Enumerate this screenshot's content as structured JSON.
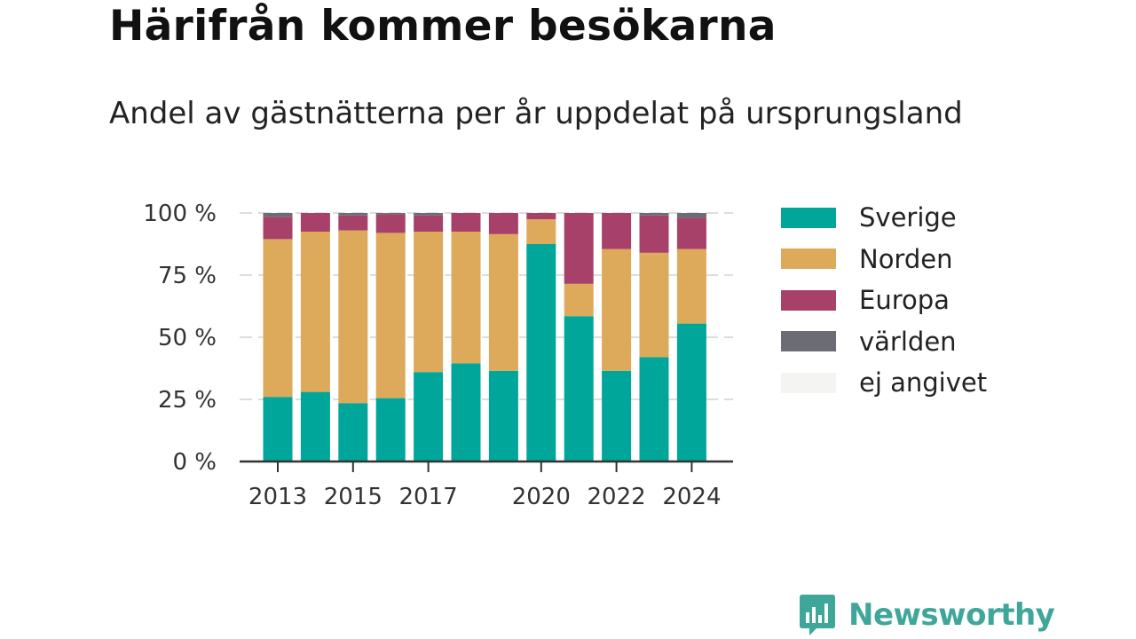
{
  "title": "Härifrån kommer besökarna",
  "subtitle": "Andel av gästnätterna per år uppdelat på ursprungsland",
  "brand": {
    "name": "Newsworthy",
    "icon": "newsworthy-logo-icon"
  },
  "colors": {
    "Sverige": "#00a69a",
    "Norden": "#dcaa5a",
    "Europa": "#a8416a",
    "världen": "#6b6c74",
    "ej angivet": "#f4f4f2"
  },
  "chart_data": {
    "type": "bar",
    "stacked": true,
    "categories": [
      2013,
      2014,
      2015,
      2016,
      2017,
      2018,
      2019,
      2020,
      2021,
      2022,
      2023,
      2024
    ],
    "x_tick_labels": [
      "2013",
      "2015",
      "2017",
      "2020",
      "2022",
      "2024"
    ],
    "series": [
      {
        "name": "Sverige",
        "values": [
          26,
          28,
          23.5,
          25.5,
          36,
          39.5,
          36.5,
          87.5,
          58.5,
          36.5,
          42,
          55.5
        ]
      },
      {
        "name": "Norden",
        "values": [
          63.5,
          64.5,
          69.5,
          66.5,
          56.5,
          53,
          55,
          10,
          13,
          49,
          42,
          30
        ]
      },
      {
        "name": "Europa",
        "values": [
          9,
          7.5,
          6,
          7.5,
          6.5,
          7.5,
          8.5,
          2.5,
          28.5,
          14.5,
          15,
          12.5
        ]
      },
      {
        "name": "världen",
        "values": [
          1.5,
          0,
          1,
          0.5,
          1,
          0,
          0,
          0,
          0,
          0,
          1,
          2
        ]
      },
      {
        "name": "ej angivet",
        "values": [
          0,
          0,
          0,
          0,
          0,
          0,
          0,
          0,
          0,
          0,
          0,
          0
        ]
      }
    ],
    "ylim": [
      0,
      100
    ],
    "y_ticks": [
      0,
      25,
      50,
      75,
      100
    ],
    "y_tick_labels": [
      "0 %",
      "25 %",
      "50 %",
      "75 %",
      "100 %"
    ],
    "xlabel": "",
    "ylabel": "",
    "grid": true,
    "legend_placement": "right"
  }
}
